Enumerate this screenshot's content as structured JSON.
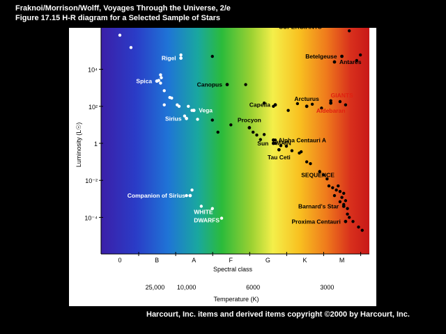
{
  "header": {
    "line1": "Fraknoi/Morrison/Wolff, Voyages Through the Universe, 2/e",
    "line2": "Figure 17.15   H-R diagram for a Selected Sample of Stars"
  },
  "footer": {
    "copyright": "Harcourt, Inc. items and derived items copyright ©2000 by Harcourt, Inc."
  },
  "chart_data": {
    "type": "scatter",
    "title": "",
    "xlabel": "Spectral class",
    "ylabel": "Luminosity (L☉)",
    "x2label": "Temperature (K)",
    "x_scale": "spectral class, hot (left) to cool (right)",
    "y_scale": "log",
    "ylim": [
      1e-05,
      10000000
    ],
    "grid": false,
    "background": "temperature color gradient (violet to red)",
    "spectral_ticks": [
      {
        "label": "0",
        "class": 0.4
      },
      {
        "label": "B",
        "class": 1.4
      },
      {
        "label": "A",
        "class": 2.4
      },
      {
        "label": "F",
        "class": 3.4
      },
      {
        "label": "G",
        "class": 4.4
      },
      {
        "label": "K",
        "class": 5.4
      },
      {
        "label": "M",
        "class": 6.4
      }
    ],
    "temperature_ticks": [
      {
        "label": "25,000",
        "class": 1.35
      },
      {
        "label": "10,000",
        "class": 2.2
      },
      {
        "label": "6000",
        "class": 4.0
      },
      {
        "label": "3000",
        "class": 6.0
      }
    ],
    "y_ticks": [
      {
        "label": "10⁴",
        "value": 10000
      },
      {
        "label": "10²",
        "value": 100
      },
      {
        "label": "1",
        "value": 1
      },
      {
        "label": "10⁻²",
        "value": 0.01
      },
      {
        "label": "10⁻⁴",
        "value": 0.0001
      }
    ],
    "region_labels": [
      {
        "text": "SUPERGIANTS",
        "class": 4.7,
        "value": 1500000,
        "color": "#000"
      },
      {
        "text": "GIANTS",
        "class": 6.1,
        "value": 300,
        "color": "#e02010"
      },
      {
        "text": "MAIN",
        "class": 4.62,
        "value": 0.8,
        "color": "#000"
      },
      {
        "text": "SEQUENCE",
        "class": 5.3,
        "value": 0.015,
        "color": "#000"
      },
      {
        "text": "WHITE",
        "class": 2.4,
        "value": 0.00015,
        "color": "#fff"
      },
      {
        "text": "DWARFS",
        "class": 2.4,
        "value": 5.5e-05,
        "color": "#fff"
      }
    ],
    "named_stars": [
      {
        "name": "Rigel",
        "class": 2.05,
        "L": 40000,
        "label_side": "left",
        "label_color": "#fff"
      },
      {
        "name": "Spica",
        "class": 1.4,
        "L": 2300,
        "label_side": "left",
        "label_color": "#fff"
      },
      {
        "name": "Canopus",
        "class": 3.3,
        "L": 1500,
        "label_side": "left",
        "label_color": "#000"
      },
      {
        "name": "Vega",
        "class": 2.4,
        "L": 60,
        "label_side": "right",
        "label_color": "#fff"
      },
      {
        "name": "Sirius",
        "class": 2.2,
        "L": 22,
        "label_side": "left",
        "label_color": "#fff"
      },
      {
        "name": "Procyon",
        "class": 3.9,
        "L": 7,
        "label_side": "above",
        "label_color": "#000"
      },
      {
        "name": "Capella",
        "class": 4.6,
        "L": 120,
        "label_side": "left",
        "label_color": "#000"
      },
      {
        "name": "Alpha Centauri A",
        "class": 4.55,
        "L": 1.5,
        "label_side": "right",
        "label_color": "#000"
      },
      {
        "name": "Sun",
        "class": 4.55,
        "L": 1,
        "label_side": "left",
        "label_color": "#000"
      },
      {
        "name": "Tau Ceti",
        "class": 4.7,
        "L": 0.45,
        "label_side": "below",
        "label_color": "#000"
      },
      {
        "name": "Arcturus",
        "class": 5.45,
        "L": 100,
        "label_side": "above",
        "label_color": "#000"
      },
      {
        "name": "Aldebaran",
        "class": 6.1,
        "L": 150,
        "label_side": "below",
        "label_color": "#e02010"
      },
      {
        "name": "Betelgeuse",
        "class": 6.4,
        "L": 50000,
        "label_side": "left",
        "label_color": "#000"
      },
      {
        "name": "Antares",
        "class": 6.2,
        "L": 25000,
        "label_side": "right",
        "label_color": "#000"
      },
      {
        "name": "Companion of Sirius",
        "class": 2.3,
        "L": 0.0015,
        "label_side": "left",
        "label_color": "#fff"
      },
      {
        "name": "Barnard's Star",
        "class": 6.45,
        "L": 0.0004,
        "label_side": "left",
        "label_color": "#000"
      },
      {
        "name": "Proxima Centauri",
        "class": 6.5,
        "L": 6e-05,
        "label_side": "left",
        "label_color": "#000"
      }
    ],
    "series": [
      {
        "name": "",
        "color": "#ffffff",
        "points": [
          [
            0.4,
            700000
          ],
          [
            0.7,
            150000
          ],
          [
            1.45,
            2500
          ],
          [
            1.5,
            1800
          ],
          [
            1.6,
            700
          ],
          [
            1.75,
            300
          ],
          [
            1.6,
            120
          ],
          [
            2.0,
            100
          ],
          [
            2.25,
            100
          ],
          [
            2.35,
            60
          ],
          [
            2.5,
            20
          ],
          [
            2.15,
            30
          ],
          [
            2.35,
            0.003
          ],
          [
            2.2,
            0.0015
          ],
          [
            2.6,
            0.0004
          ],
          [
            2.9,
            0.0003
          ],
          [
            3.15,
            9e-05
          ],
          [
            1.8,
            280
          ],
          [
            1.95,
            120
          ],
          [
            1.5,
            5000
          ],
          [
            1.52,
            3500
          ],
          [
            2.05,
            60000
          ]
        ]
      },
      {
        "name": "",
        "color": "#000000",
        "points": [
          [
            2.9,
            50000
          ],
          [
            3.8,
            1500
          ],
          [
            2.9,
            18
          ],
          [
            3.4,
            10
          ],
          [
            3.05,
            4
          ],
          [
            3.9,
            7
          ],
          [
            4.0,
            4
          ],
          [
            4.1,
            2.8
          ],
          [
            4.3,
            3
          ],
          [
            4.2,
            1.6
          ],
          [
            4.6,
            1.5
          ],
          [
            4.6,
            1.0
          ],
          [
            4.75,
            0.75
          ],
          [
            4.9,
            0.7
          ],
          [
            5.05,
            0.4
          ],
          [
            5.25,
            0.3
          ],
          [
            5.3,
            0.35
          ],
          [
            5.45,
            0.1
          ],
          [
            5.55,
            0.08
          ],
          [
            5.8,
            0.03
          ],
          [
            5.9,
            0.02
          ],
          [
            6.0,
            0.012
          ],
          [
            6.05,
            0.005
          ],
          [
            6.15,
            0.004
          ],
          [
            6.25,
            0.003
          ],
          [
            6.35,
            0.0025
          ],
          [
            6.45,
            0.002
          ],
          [
            6.4,
            0.0012
          ],
          [
            6.5,
            0.0008
          ],
          [
            6.45,
            0.0005
          ],
          [
            6.55,
            0.0003
          ],
          [
            6.55,
            0.00015
          ],
          [
            6.6,
            0.0001
          ],
          [
            6.7,
            6e-05
          ],
          [
            6.85,
            3e-05
          ],
          [
            6.95,
            2e-05
          ],
          [
            6.3,
            0.005
          ],
          [
            6.2,
            0.0015
          ],
          [
            6.35,
            0.0007
          ],
          [
            4.55,
            100
          ],
          [
            4.95,
            60
          ],
          [
            5.2,
            140
          ],
          [
            5.6,
            130
          ],
          [
            5.85,
            80
          ],
          [
            6.1,
            200
          ],
          [
            6.35,
            180
          ],
          [
            6.5,
            120
          ],
          [
            6.8,
            30000
          ],
          [
            6.9,
            60000
          ],
          [
            6.6,
            1200000
          ],
          [
            4.3,
            150
          ]
        ]
      }
    ]
  }
}
